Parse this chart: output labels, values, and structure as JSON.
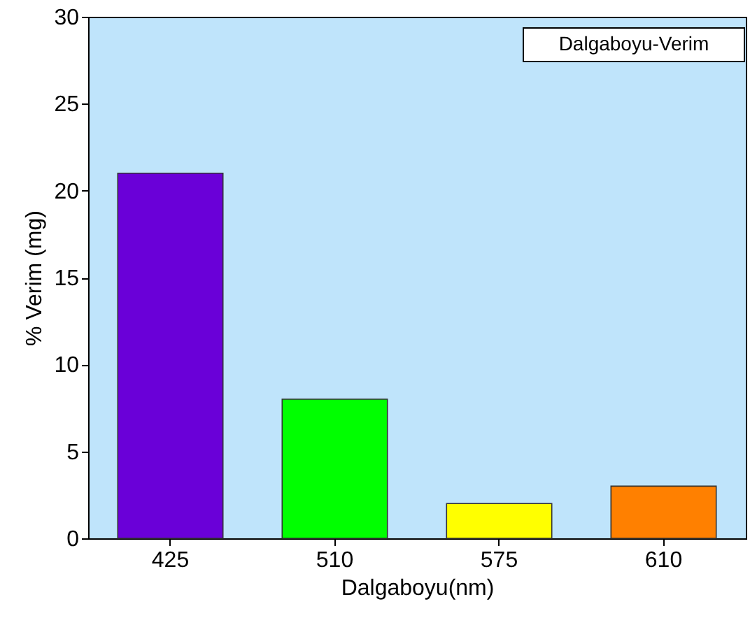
{
  "chart_data": {
    "type": "bar",
    "xlabel": "Dalgaboyu(nm)",
    "ylabel": "% Verim (mg)",
    "categories": [
      "425",
      "510",
      "575",
      "610"
    ],
    "values": [
      21,
      8,
      2,
      3
    ],
    "colors": [
      "#6a00d8",
      "#00ff00",
      "#ffff00",
      "#ff8000"
    ],
    "ylim": [
      0,
      30
    ],
    "yticks": [
      0,
      5,
      10,
      15,
      20,
      25,
      30
    ],
    "grid": false,
    "annotations": [
      "Dalgaboyu-Verim"
    ]
  }
}
